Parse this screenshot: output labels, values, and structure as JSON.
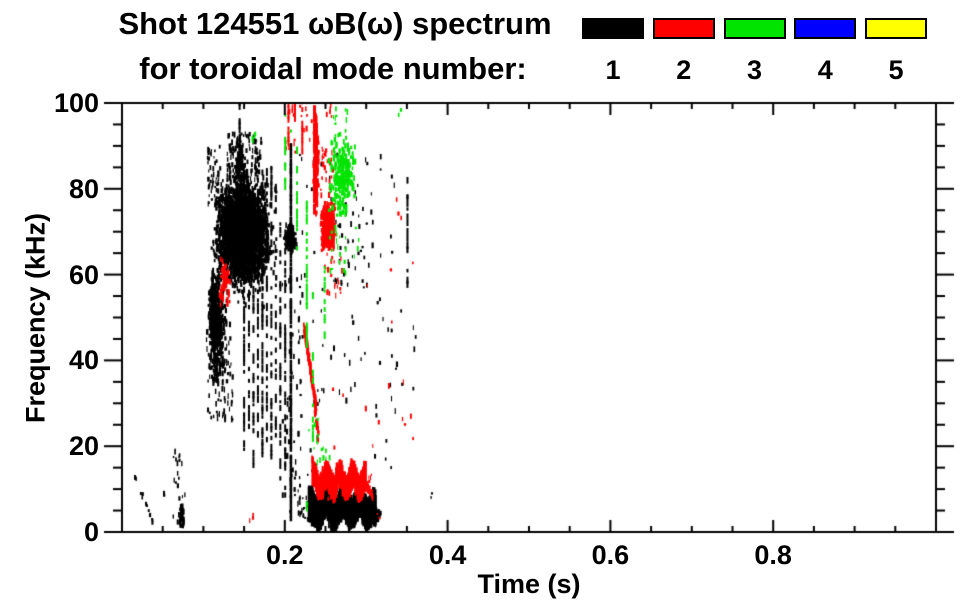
{
  "chart_data": {
    "type": "scatter",
    "title": "Shot 124551 ωB(ω) spectrum",
    "subtitle": "for toroidal mode number:",
    "xlabel": "Time (s)",
    "ylabel": "Frequency (kHz)",
    "xlim": [
      0,
      1
    ],
    "ylim": [
      0,
      100
    ],
    "x_major_ticks": [
      0.2,
      0.4,
      0.6,
      0.8
    ],
    "x_tick_labels": [
      "0.2",
      "0.4",
      "0.6",
      "0.8"
    ],
    "x_minor_step": 0.05,
    "y_major_ticks": [
      0,
      20,
      40,
      60,
      80,
      100
    ],
    "y_tick_labels": [
      "0",
      "20",
      "40",
      "60",
      "80",
      "100"
    ],
    "y_minor_step": 5,
    "grid": false,
    "legend_position": "top-right",
    "legend": [
      {
        "mode": 1,
        "label": "1",
        "color": "#000000"
      },
      {
        "mode": 2,
        "label": "2",
        "color": "#ff0000"
      },
      {
        "mode": 3,
        "label": "3",
        "color": "#00e400"
      },
      {
        "mode": 4,
        "label": "4",
        "color": "#0000ff"
      },
      {
        "mode": 5,
        "label": "5",
        "color": "#ffff00"
      }
    ],
    "series": [
      {
        "name": "n=1",
        "color": "#000000",
        "summary": "dense black activity 0.01-0.38 s: main blob 0.11-0.19 s at 55-90 kHz, vertical streaks to 0.21 s, low band 1-10 kHz at 0.23-0.32 s, isolated streak at 0.35 s"
      },
      {
        "name": "n=2",
        "color": "#ff0000",
        "summary": "red activity 0.20-0.31 s: streaks 88-100 kHz, blob 65-77 kHz, down-chirp 48-29 kHz, low band 9-15 kHz"
      },
      {
        "name": "n=3",
        "color": "#00e400",
        "summary": "green activity 0.20-0.29 s: cluster 72-93 kHz and dashed columns 15-98 kHz"
      },
      {
        "name": "n=4",
        "color": "#0000ff",
        "summary": "no visible points"
      },
      {
        "name": "n=5",
        "color": "#ffff00",
        "summary": "no visible points"
      }
    ],
    "clusters": [
      {
        "m": 1,
        "ty": "chirp",
        "t0": 0.013,
        "f0": 14,
        "t1": 0.038,
        "f1": 2,
        "th": 1.5,
        "n": 14
      },
      {
        "m": 1,
        "ty": "specks",
        "t": [
          0.048,
          0.053
        ],
        "f": [
          7,
          9
        ],
        "n": 2
      },
      {
        "m": 1,
        "ty": "specks",
        "t": [
          0.062,
          0.078
        ],
        "f": [
          3,
          19
        ],
        "n": 20
      },
      {
        "m": 1,
        "ty": "blob",
        "t": [
          0.067,
          0.077
        ],
        "f": [
          1,
          7
        ],
        "n": 40
      },
      {
        "m": 1,
        "ty": "blob",
        "t": [
          0.105,
          0.19
        ],
        "f": [
          52,
          88
        ],
        "n": 650
      },
      {
        "m": 1,
        "ty": "blob",
        "t": [
          0.113,
          0.18
        ],
        "f": [
          58,
          82
        ],
        "n": 2400
      },
      {
        "m": 1,
        "ty": "specks",
        "t": [
          0.128,
          0.17
        ],
        "f": [
          82,
          93
        ],
        "n": 110
      },
      {
        "m": 1,
        "ty": "vline",
        "x": 0.1445,
        "f": [
          84,
          100
        ],
        "p": 0.6,
        "w": 2
      },
      {
        "m": 1,
        "ty": "blob",
        "t": [
          0.137,
          0.151
        ],
        "f": [
          80,
          92
        ],
        "n": 80
      },
      {
        "m": 1,
        "ty": "specks",
        "t": [
          0.104,
          0.119
        ],
        "f": [
          76,
          90
        ],
        "n": 50
      },
      {
        "m": 1,
        "ty": "blob",
        "t": [
          0.103,
          0.128
        ],
        "f": [
          32,
          62
        ],
        "n": 400
      },
      {
        "m": 1,
        "ty": "blob",
        "t": [
          0.106,
          0.117
        ],
        "f": [
          44,
          60
        ],
        "n": 150
      },
      {
        "m": 1,
        "ty": "specks",
        "t": [
          0.103,
          0.135
        ],
        "f": [
          26,
          50
        ],
        "n": 80
      },
      {
        "m": 1,
        "ty": "vline",
        "x": 0.15,
        "f": [
          18,
          78
        ],
        "p": 0.5,
        "w": 2
      },
      {
        "m": 1,
        "ty": "vline",
        "x": 0.156,
        "f": [
          24,
          80
        ],
        "p": 0.45,
        "w": 2
      },
      {
        "m": 1,
        "ty": "vline",
        "x": 0.1615,
        "f": [
          14,
          76
        ],
        "p": 0.5,
        "w": 2
      },
      {
        "m": 1,
        "ty": "vline",
        "x": 0.167,
        "f": [
          22,
          82
        ],
        "p": 0.45,
        "w": 2
      },
      {
        "m": 1,
        "ty": "vline",
        "x": 0.1725,
        "f": [
          12,
          84
        ],
        "p": 0.5,
        "w": 2
      },
      {
        "m": 1,
        "ty": "vline",
        "x": 0.178,
        "f": [
          20,
          86
        ],
        "p": 0.45,
        "w": 2
      },
      {
        "m": 1,
        "ty": "vline",
        "x": 0.1835,
        "f": [
          16,
          85
        ],
        "p": 0.5,
        "w": 2
      },
      {
        "m": 1,
        "ty": "vline",
        "x": 0.189,
        "f": [
          22,
          80
        ],
        "p": 0.4,
        "w": 2
      },
      {
        "m": 1,
        "ty": "vline",
        "x": 0.1945,
        "f": [
          12,
          72
        ],
        "p": 0.45,
        "w": 2
      },
      {
        "m": 1,
        "ty": "vline",
        "x": 0.2005,
        "f": [
          8,
          66
        ],
        "p": 0.4,
        "w": 2
      },
      {
        "m": 1,
        "ty": "vline",
        "x": 0.2075,
        "f": [
          2.5,
          90
        ],
        "p": 0.93,
        "w": 2.5
      },
      {
        "m": 1,
        "ty": "blob",
        "t": [
          0.197,
          0.214
        ],
        "f": [
          65,
          72
        ],
        "n": 110
      },
      {
        "m": 1,
        "ty": "specks",
        "t": [
          0.196,
          0.22
        ],
        "f": [
          4,
          60
        ],
        "n": 60
      },
      {
        "m": 1,
        "ty": "specks",
        "t": [
          0.214,
          0.228
        ],
        "f": [
          2,
          8
        ],
        "n": 20
      },
      {
        "m": 1,
        "ty": "band",
        "t": [
          0.2285,
          0.31
        ],
        "fm": 5.5,
        "amp": 1.5,
        "hh": 3.0,
        "n": 300
      },
      {
        "m": 1,
        "ty": "blob",
        "t": [
          0.304,
          0.317
        ],
        "f": [
          1.5,
          6.5
        ],
        "n": 60
      },
      {
        "m": 1,
        "ty": "specks",
        "t": [
          0.215,
          0.335
        ],
        "f": [
          12,
          88
        ],
        "n": 95
      },
      {
        "m": 1,
        "ty": "specks",
        "t": [
          0.258,
          0.3
        ],
        "f": [
          55,
          75
        ],
        "n": 25
      },
      {
        "m": 1,
        "ty": "specks",
        "t": [
          0.33,
          0.365
        ],
        "f": [
          18,
          52
        ],
        "n": 10
      },
      {
        "m": 1,
        "ty": "vline",
        "x": 0.3507,
        "f": [
          56,
          82
        ],
        "p": 0.5,
        "w": 2
      },
      {
        "m": 1,
        "ty": "specks",
        "t": [
          0.376,
          0.38
        ],
        "f": [
          7.5,
          9.5
        ],
        "n": 2
      },
      {
        "m": 2,
        "ty": "vline",
        "x": 0.2045,
        "f": [
          90,
          100
        ],
        "p": 0.55,
        "w": 2
      },
      {
        "m": 2,
        "ty": "vline",
        "x": 0.2125,
        "f": [
          92,
          100
        ],
        "p": 0.55,
        "w": 2
      },
      {
        "m": 2,
        "ty": "vline",
        "x": 0.2215,
        "f": [
          88,
          100
        ],
        "p": 0.5,
        "w": 2
      },
      {
        "m": 2,
        "ty": "specks",
        "t": [
          0.2,
          0.232
        ],
        "f": [
          88,
          100
        ],
        "n": 18
      },
      {
        "m": 2,
        "ty": "blob",
        "t": [
          0.2335,
          0.2405
        ],
        "f": [
          74,
          98
        ],
        "n": 230
      },
      {
        "m": 2,
        "ty": "vline",
        "x": 0.2365,
        "f": [
          74,
          99
        ],
        "p": 0.85,
        "w": 3
      },
      {
        "m": 2,
        "ty": "specks",
        "t": [
          0.25,
          0.257
        ],
        "f": [
          95,
          100
        ],
        "n": 5
      },
      {
        "m": 2,
        "ty": "blob",
        "t": [
          0.2425,
          0.262
        ],
        "f": [
          65,
          77
        ],
        "n": 340
      },
      {
        "m": 2,
        "ty": "specks",
        "t": [
          0.243,
          0.258
        ],
        "f": [
          78,
          90
        ],
        "n": 30
      },
      {
        "m": 2,
        "ty": "specks",
        "t": [
          0.246,
          0.27
        ],
        "f": [
          55,
          65
        ],
        "n": 20
      },
      {
        "m": 2,
        "ty": "chirp",
        "t0": 0.2225,
        "f0": 48,
        "t1": 0.2375,
        "f1": 29,
        "th": 2.5,
        "n": 190
      },
      {
        "m": 2,
        "ty": "chirp",
        "t0": 0.2355,
        "f0": 29,
        "t1": 0.2405,
        "f1": 22,
        "th": 2,
        "n": 36
      },
      {
        "m": 2,
        "ty": "chirp",
        "t0": 0.2325,
        "f0": 17,
        "t1": 0.236,
        "f1": 13.5,
        "th": 1.8,
        "n": 26
      },
      {
        "m": 2,
        "ty": "band",
        "t": [
          0.2335,
          0.298
        ],
        "fm": 11.8,
        "amp": 1.7,
        "hh": 2.3,
        "n": 240
      },
      {
        "m": 2,
        "ty": "chirp",
        "t0": 0.295,
        "f0": 11.5,
        "t1": 0.307,
        "f1": 8.5,
        "th": 1.6,
        "n": 36
      },
      {
        "m": 2,
        "ty": "specks",
        "t": [
          0.296,
          0.306
        ],
        "f": [
          10.5,
          13.5
        ],
        "n": 10
      },
      {
        "m": 2,
        "ty": "specks",
        "t": [
          0.245,
          0.262
        ],
        "f": [
          6.5,
          8.5
        ],
        "n": 6
      },
      {
        "m": 2,
        "ty": "blob",
        "t": [
          0.118,
          0.132
        ],
        "f": [
          52,
          65
        ],
        "n": 55
      },
      {
        "m": 2,
        "ty": "specks",
        "t": [
          0.154,
          0.161
        ],
        "f": [
          2,
          4.5
        ],
        "n": 3
      },
      {
        "m": 2,
        "ty": "specks",
        "t": [
          0.21,
          0.36
        ],
        "f": [
          17,
          64
        ],
        "n": 16
      },
      {
        "m": 2,
        "ty": "specks",
        "t": [
          0.335,
          0.346
        ],
        "f": [
          73,
          78
        ],
        "n": 3
      },
      {
        "m": 2,
        "ty": "specks",
        "t": [
          0.342,
          0.347
        ],
        "f": [
          24,
          27
        ],
        "n": 2
      },
      {
        "m": 2,
        "ty": "specks",
        "t": [
          0.31,
          0.318
        ],
        "f": [
          2.5,
          4.5
        ],
        "n": 2
      },
      {
        "m": 3,
        "ty": "blob",
        "t": [
          0.251,
          0.288
        ],
        "f": [
          72,
          93
        ],
        "n": 260
      },
      {
        "m": 3,
        "ty": "specks",
        "t": [
          0.255,
          0.278
        ],
        "f": [
          93,
          99
        ],
        "n": 9
      },
      {
        "m": 3,
        "ty": "specks",
        "t": [
          0.252,
          0.29
        ],
        "f": [
          60,
          72
        ],
        "n": 24
      },
      {
        "m": 3,
        "ty": "vline",
        "x": 0.2005,
        "f": [
          77,
          97
        ],
        "p": 0.45,
        "w": 2
      },
      {
        "m": 3,
        "ty": "vline",
        "x": 0.2075,
        "f": [
          85,
          96
        ],
        "p": 0.35,
        "w": 2
      },
      {
        "m": 3,
        "ty": "vline",
        "x": 0.215,
        "f": [
          62,
          89
        ],
        "p": 0.4,
        "w": 2
      },
      {
        "m": 3,
        "ty": "vline",
        "x": 0.227,
        "f": [
          42,
          80
        ],
        "p": 0.5,
        "w": 2
      },
      {
        "m": 3,
        "ty": "vline",
        "x": 0.2345,
        "f": [
          21,
          56
        ],
        "p": 0.3,
        "w": 2
      },
      {
        "m": 3,
        "ty": "vline",
        "x": 0.249,
        "f": [
          45,
          62
        ],
        "p": 0.45,
        "w": 2
      },
      {
        "m": 3,
        "ty": "specks",
        "t": [
          0.228,
          0.242
        ],
        "f": [
          20,
          27
        ],
        "n": 7
      },
      {
        "m": 3,
        "ty": "specks",
        "t": [
          0.232,
          0.254
        ],
        "f": [
          15,
          20
        ],
        "n": 9
      },
      {
        "m": 3,
        "ty": "specks",
        "t": [
          0.221,
          0.227
        ],
        "f": [
          5,
          8
        ],
        "n": 3
      },
      {
        "m": 3,
        "ty": "specks",
        "t": [
          0.156,
          0.164
        ],
        "f": [
          89,
          94
        ],
        "n": 5
      },
      {
        "m": 3,
        "ty": "specks",
        "t": [
          0.337,
          0.342
        ],
        "f": [
          96,
          99
        ],
        "n": 2
      }
    ]
  }
}
